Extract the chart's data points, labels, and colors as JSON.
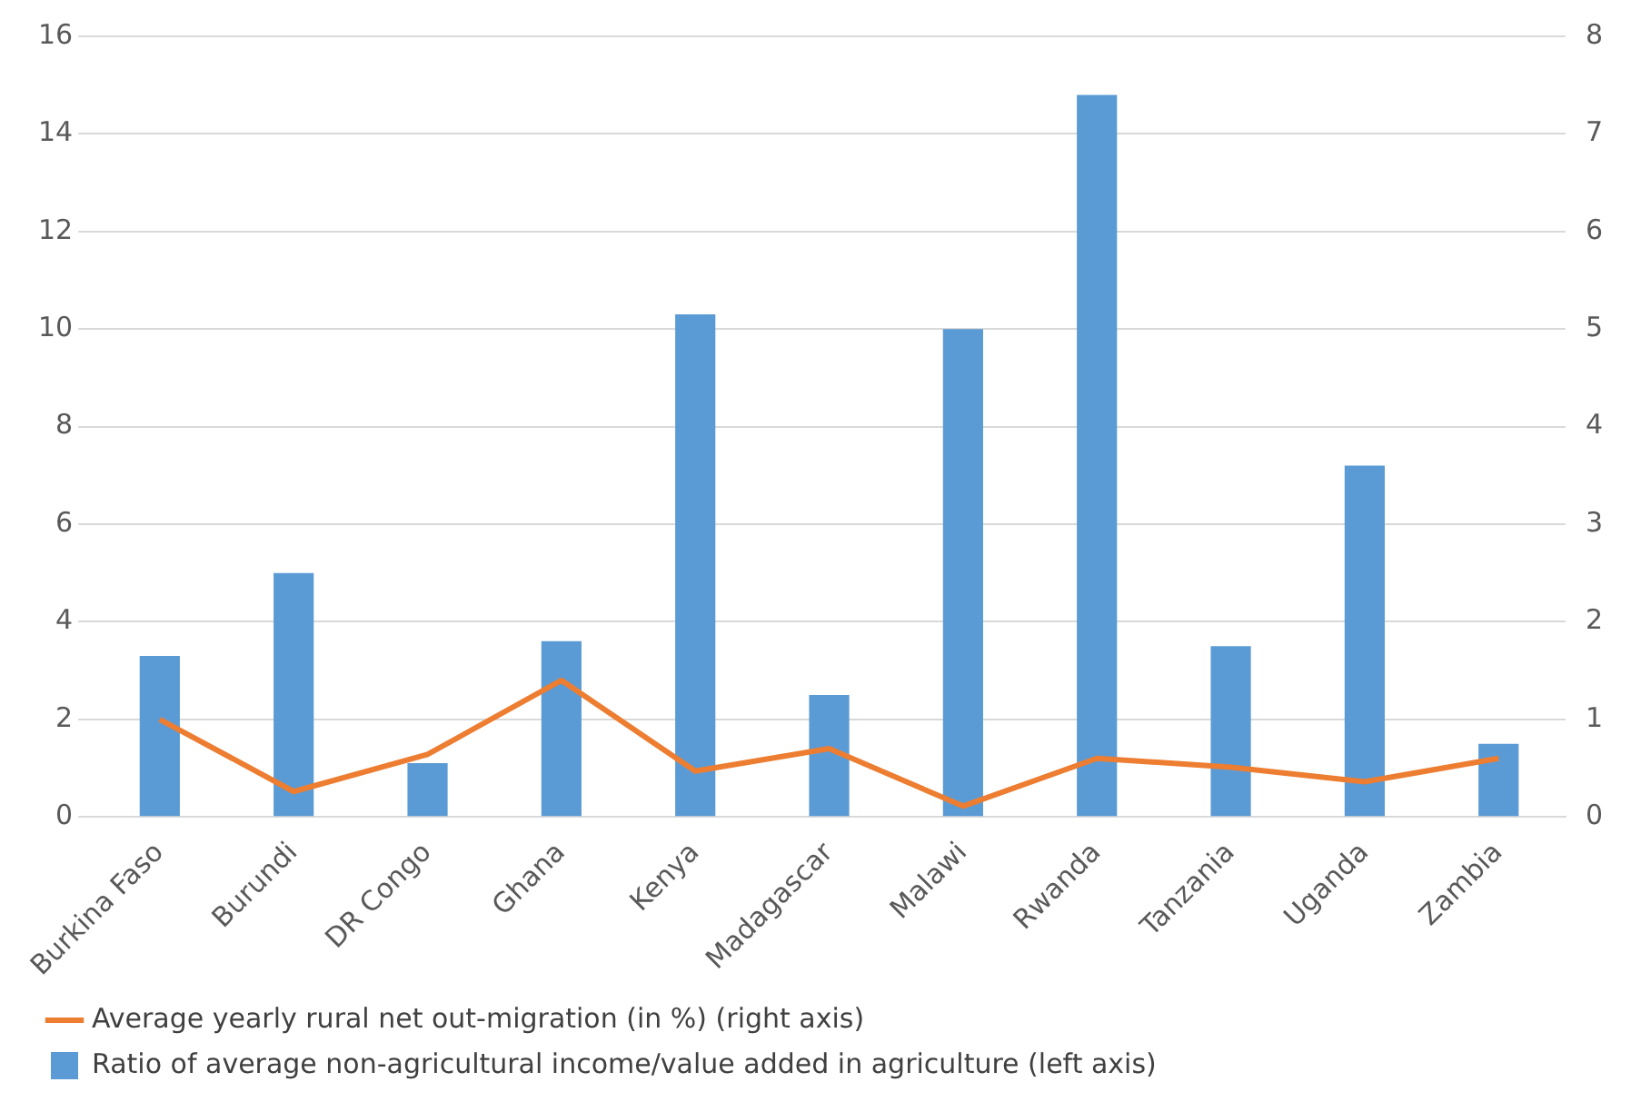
{
  "chart_data": {
    "type": "bar",
    "categories": [
      "Burkina Faso",
      "Burundi",
      "DR Congo",
      "Ghana",
      "Kenya",
      "Madagascar",
      "Malawi",
      "Rwanda",
      "Tanzania",
      "Uganda",
      "Zambia"
    ],
    "series": [
      {
        "name": "Ratio of average non-agricultural income/value added in agriculture (left axis)",
        "color": "#5b9bd5",
        "values": [
          3.3,
          5.0,
          1.1,
          3.6,
          10.3,
          2.5,
          10.0,
          14.8,
          3.5,
          7.2,
          1.5
        ]
      },
      {
        "name": "Average yearly rural net out-migration (in %) (right axis)",
        "type": "line",
        "axis": "y2",
        "color": "#ed7d31",
        "values": [
          1.0,
          0.26,
          0.64,
          1.4,
          0.47,
          0.7,
          0.11,
          0.6,
          0.51,
          0.36,
          0.6
        ]
      }
    ],
    "ylim": [
      0,
      16
    ],
    "yticks": [
      0,
      2,
      4,
      6,
      8,
      10,
      12,
      14,
      16
    ],
    "y2lim": [
      0,
      8
    ],
    "y2ticks": [
      0,
      1,
      2,
      3,
      4,
      5,
      6,
      7,
      8
    ],
    "grid": "y",
    "legend": "bottom",
    "marker": "none"
  }
}
